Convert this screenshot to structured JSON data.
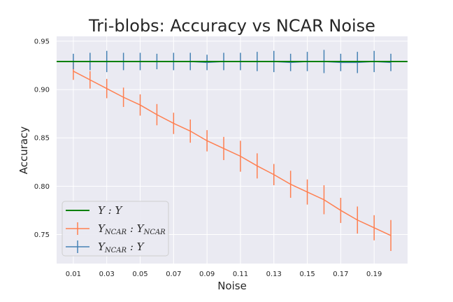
{
  "chart_data": {
    "type": "line",
    "title": "Tri-blobs: Accuracy vs NCAR Noise",
    "xlabel": "Noise",
    "ylabel": "Accuracy",
    "xlim": [
      0.0,
      0.21
    ],
    "ylim": [
      0.72,
      0.955
    ],
    "xticks": [
      "0.01",
      "0.03",
      "0.05",
      "0.07",
      "0.09",
      "0.11",
      "0.13",
      "0.15",
      "0.17",
      "0.19"
    ],
    "yticks": [
      "0.75",
      "0.80",
      "0.85",
      "0.90",
      "0.95"
    ],
    "grid": true,
    "legend_placement": "lower-left",
    "x": [
      0.01,
      0.02,
      0.03,
      0.04,
      0.05,
      0.06,
      0.07,
      0.08,
      0.09,
      0.1,
      0.11,
      0.12,
      0.13,
      0.14,
      0.15,
      0.16,
      0.17,
      0.18,
      0.19,
      0.2
    ],
    "series": [
      {
        "legend_main": "Y : Y",
        "kind": "hline",
        "color": "#008000",
        "value": 0.929
      },
      {
        "legend_main": "Y",
        "legend_sub": "NCAR",
        "legend_mid": " : Y",
        "legend_sub2": "NCAR",
        "kind": "errorbar",
        "color": "#ff7f50",
        "values": [
          0.919,
          0.91,
          0.901,
          0.892,
          0.884,
          0.874,
          0.865,
          0.857,
          0.847,
          0.839,
          0.831,
          0.821,
          0.812,
          0.802,
          0.794,
          0.786,
          0.775,
          0.765,
          0.757,
          0.749
        ],
        "errors": [
          0.009,
          0.009,
          0.01,
          0.01,
          0.011,
          0.011,
          0.011,
          0.012,
          0.011,
          0.012,
          0.016,
          0.013,
          0.011,
          0.014,
          0.013,
          0.015,
          0.013,
          0.014,
          0.013,
          0.016
        ]
      },
      {
        "legend_main": "Y",
        "legend_sub": "NCAR",
        "legend_mid": " : Y",
        "kind": "errorbar",
        "color": "#4682b4",
        "values": [
          0.929,
          0.929,
          0.929,
          0.929,
          0.929,
          0.929,
          0.929,
          0.929,
          0.928,
          0.929,
          0.929,
          0.929,
          0.929,
          0.928,
          0.929,
          0.929,
          0.928,
          0.928,
          0.929,
          0.928
        ],
        "errors": [
          0.008,
          0.009,
          0.011,
          0.009,
          0.009,
          0.008,
          0.009,
          0.009,
          0.008,
          0.009,
          0.009,
          0.01,
          0.011,
          0.009,
          0.01,
          0.012,
          0.009,
          0.011,
          0.011,
          0.009
        ]
      }
    ]
  }
}
